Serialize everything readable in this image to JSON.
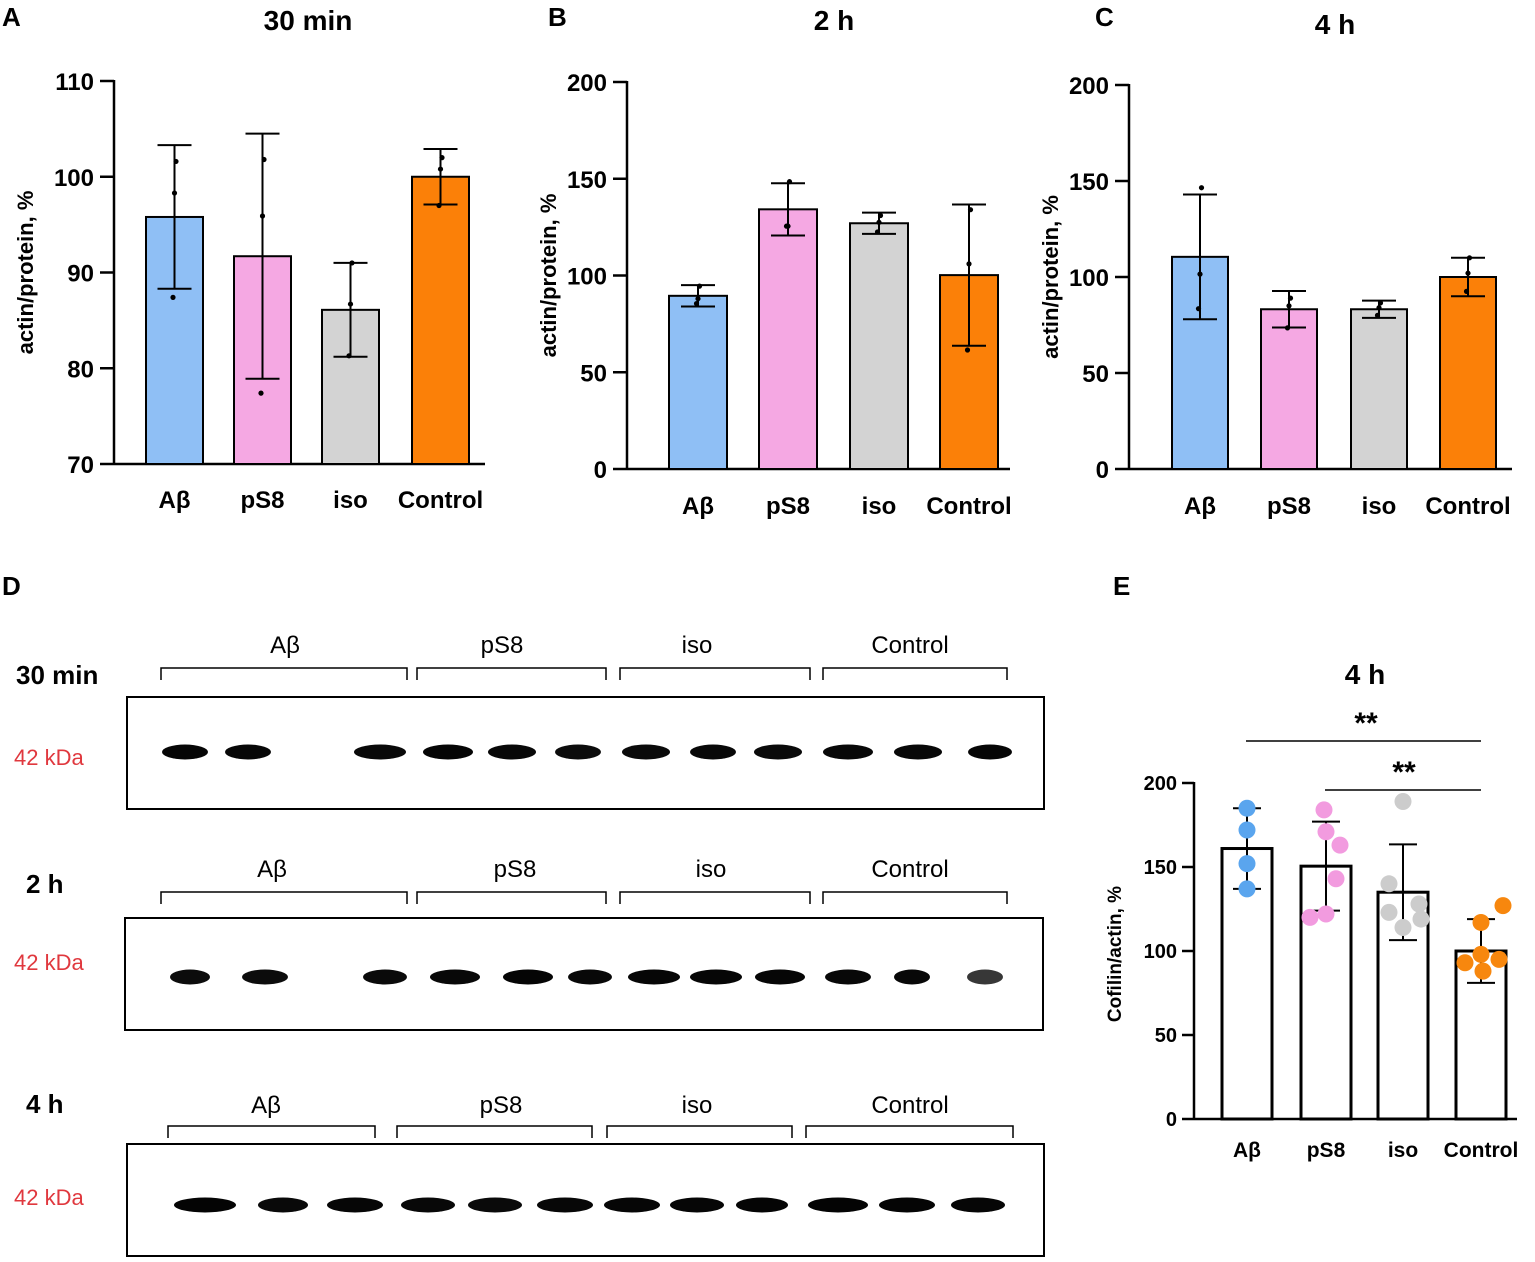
{
  "colors": {
    "abeta": "#8fbff5",
    "ps8": "#f5a8e3",
    "iso": "#d3d3d3",
    "control": "#fb8008",
    "kda_label": "#e0383e"
  },
  "chart_data": [
    {
      "panel": "A",
      "type": "bar",
      "title": "30 min",
      "ylabel": "actin/protein, %",
      "ylim": [
        70,
        110
      ],
      "yticks": [
        "70",
        "80",
        "90",
        "100",
        "110"
      ],
      "categories": [
        "Aβ",
        "pS8",
        "iso",
        "Control"
      ],
      "values": [
        95.8,
        91.7,
        86.1,
        100.0
      ],
      "sd": [
        7.5,
        12.8,
        4.9,
        2.9
      ],
      "points": [
        [
          87.4,
          98.3,
          101.6
        ],
        [
          77.4,
          95.9,
          101.8
        ],
        [
          81.3,
          86.7,
          91.0
        ],
        [
          97.0,
          100.8,
          102.0
        ]
      ]
    },
    {
      "panel": "B",
      "type": "bar",
      "title": "2 h",
      "ylabel": "actin/protein, %",
      "ylim": [
        0,
        200
      ],
      "yticks": [
        "0",
        "50",
        "100",
        "150",
        "200"
      ],
      "categories": [
        "Aβ",
        "pS8",
        "iso",
        "Control"
      ],
      "values": [
        89.5,
        134.2,
        127.0,
        100.2
      ],
      "sd": [
        5.5,
        13.5,
        5.5,
        36.5
      ],
      "points": [
        [
          85.5,
          88.0,
          94.5
        ],
        [
          125.5,
          125.5,
          148.5
        ],
        [
          122.5,
          127.5,
          131.0
        ],
        [
          61.5,
          106.0,
          134.0
        ]
      ]
    },
    {
      "panel": "C",
      "type": "bar",
      "title": "4 h",
      "ylabel": "actin/protein, %",
      "ylim": [
        0,
        200
      ],
      "yticks": [
        "0",
        "50",
        "100",
        "150",
        "200"
      ],
      "categories": [
        "Aβ",
        "pS8",
        "iso",
        "Control"
      ],
      "values": [
        110.5,
        83.2,
        83.2,
        100.0
      ],
      "sd": [
        32.5,
        9.5,
        4.5,
        10.0
      ],
      "points": [
        [
          83.5,
          101.5,
          146.5
        ],
        [
          73.5,
          85.0,
          89.0
        ],
        [
          80.0,
          84.0,
          86.5
        ],
        [
          92.5,
          102.0,
          110.0
        ]
      ]
    },
    {
      "panel": "E",
      "type": "bar",
      "title": "4 h",
      "ylabel": "Cofilin/actin, %",
      "ylim": [
        0,
        200
      ],
      "yticks": [
        "0",
        "50",
        "100",
        "150",
        "200"
      ],
      "categories": [
        "Aβ",
        "pS8",
        "iso",
        "Control"
      ],
      "values": [
        161.0,
        150.5,
        135.0,
        100.0
      ],
      "sd": [
        24.0,
        26.5,
        28.5,
        19.0
      ],
      "points": [
        [
          137.0,
          152.0,
          172.0,
          185.0
        ],
        [
          120.0,
          122.0,
          143.0,
          163.0,
          171.0,
          184.0
        ],
        [
          114.0,
          119.0,
          123.0,
          128.0,
          140.0,
          189.0
        ],
        [
          88.0,
          93.0,
          95.0,
          98.0,
          117.0,
          127.0
        ]
      ],
      "significance": [
        {
          "from": "Aβ",
          "to": "Control",
          "label": "**"
        },
        {
          "from": "pS8",
          "to": "Control",
          "label": "**"
        }
      ]
    }
  ],
  "panels": {
    "a_label": "A",
    "b_label": "B",
    "c_label": "C",
    "d_label": "D",
    "e_label": "E"
  },
  "blots": {
    "marker": "42 kDa",
    "rows": [
      {
        "time": "30 min",
        "groups": [
          "Aβ",
          "pS8",
          "iso",
          "Control"
        ],
        "intensities": [
          0.85,
          0.82,
          0,
          0.78,
          0.88,
          0.8,
          0.7,
          0.75,
          0.8,
          0.75,
          0.8,
          0.8,
          0.85
        ]
      },
      {
        "time": "2 h",
        "groups": [
          "Aβ",
          "pS8",
          "iso",
          "Control"
        ],
        "intensities": [
          0.7,
          0.7,
          0,
          0.75,
          0.8,
          0.88,
          0.8,
          0.85,
          0.85,
          0.85,
          0.8,
          0.8,
          0.5
        ]
      },
      {
        "time": "4 h",
        "groups": [
          "Aβ",
          "pS8",
          "iso",
          "Control"
        ],
        "intensities": [
          0.9,
          0.78,
          0.85,
          0.8,
          0.75,
          0.82,
          0.85,
          0.85,
          0.88,
          0.9,
          0.88,
          0.85
        ]
      }
    ]
  }
}
